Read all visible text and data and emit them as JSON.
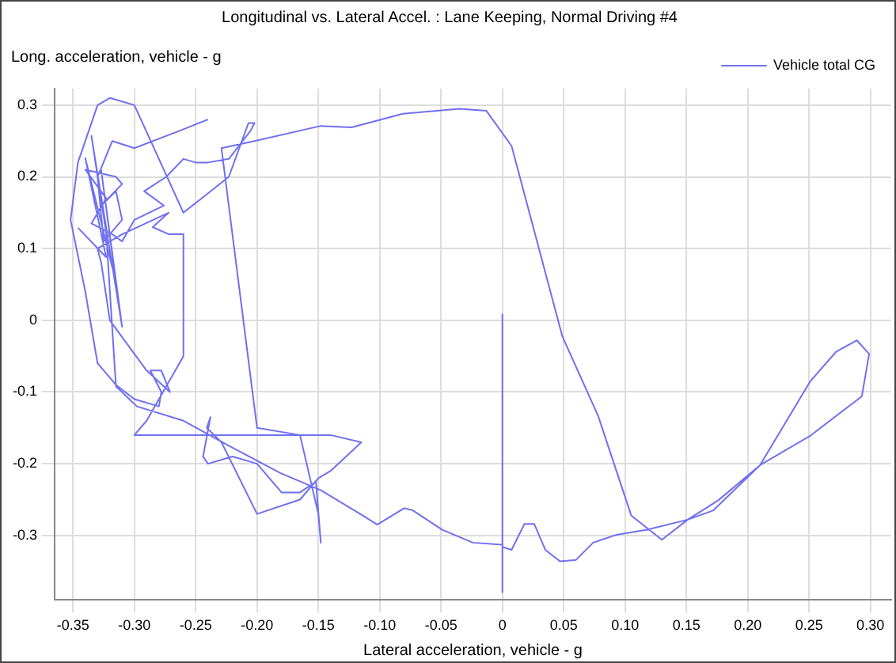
{
  "chart_data": {
    "type": "line",
    "title": "Longitudinal vs. Lateral Accel. : Lane Keeping, Normal Driving #4",
    "xlabel": "Lateral acceleration, vehicle - g",
    "ylabel": "Long. acceleration, vehicle - g",
    "series": [
      {
        "name": "Vehicle total CG",
        "color": "#7070f0",
        "x": [
          -0.24,
          -0.262,
          -0.3,
          -0.318,
          -0.33,
          -0.325,
          -0.31,
          -0.315,
          -0.327,
          -0.31,
          -0.315,
          -0.34,
          -0.323,
          -0.335,
          -0.318,
          -0.31,
          -0.3,
          -0.276,
          -0.292,
          -0.274,
          -0.26,
          -0.25,
          -0.24,
          -0.223,
          -0.205,
          -0.202,
          -0.207,
          -0.223,
          -0.26,
          -0.3,
          -0.32,
          -0.33,
          -0.346,
          -0.352,
          -0.34,
          -0.33,
          -0.315,
          -0.3,
          -0.28,
          -0.278,
          -0.287,
          -0.278,
          -0.271,
          -0.29,
          -0.32,
          -0.327,
          -0.33,
          -0.31,
          -0.272,
          -0.285,
          -0.272,
          -0.26,
          -0.26,
          -0.29,
          -0.3,
          -0.25,
          -0.2,
          -0.14,
          -0.115,
          -0.14,
          -0.15,
          -0.165,
          -0.2,
          -0.229,
          -0.241,
          -0.238,
          -0.244,
          -0.24,
          -0.22,
          -0.2,
          -0.18,
          -0.165,
          -0.152,
          -0.148,
          -0.15,
          -0.165,
          -0.2,
          -0.229,
          -0.202,
          -0.148,
          -0.123,
          -0.081,
          -0.035,
          -0.013,
          0.0075,
          0.049,
          0.078,
          0.105,
          0.13,
          0.151,
          0.176,
          0.21,
          0.251,
          0.272,
          0.289,
          0.299,
          0.293,
          0.251,
          0.21,
          0.172,
          0.151,
          0.118,
          0.093,
          0.074,
          0.06,
          0.047,
          0.035,
          0.026,
          0.018,
          0.0075,
          0,
          0,
          0,
          0,
          -0.024,
          -0.049,
          -0.073,
          -0.08,
          -0.102,
          -0.114,
          -0.148,
          -0.181,
          -0.223,
          -0.26,
          -0.298,
          -0.315,
          -0.323,
          -0.335,
          -0.31,
          -0.327,
          -0.315,
          -0.34,
          -0.323,
          -0.346
        ],
        "values": [
          0.28,
          0.265,
          0.24,
          0.25,
          0.2,
          0.11,
          0.14,
          0.18,
          0.16,
          0.19,
          0.2,
          0.21,
          0.17,
          0.135,
          0.12,
          0.11,
          0.14,
          0.16,
          0.18,
          0.2,
          0.225,
          0.22,
          0.22,
          0.225,
          0.265,
          0.275,
          0.275,
          0.2,
          0.15,
          0.3,
          0.31,
          0.3,
          0.22,
          0.14,
          0.04,
          -0.06,
          -0.09,
          -0.11,
          -0.12,
          -0.1,
          -0.07,
          -0.07,
          -0.1,
          -0.07,
          0.0,
          0.08,
          0.1,
          0.12,
          0.15,
          0.13,
          0.12,
          0.12,
          -0.05,
          -0.14,
          -0.16,
          -0.16,
          -0.16,
          -0.16,
          -0.17,
          -0.21,
          -0.22,
          -0.25,
          -0.27,
          -0.17,
          -0.15,
          -0.135,
          -0.19,
          -0.2,
          -0.19,
          -0.2,
          -0.24,
          -0.24,
          -0.225,
          -0.31,
          -0.27,
          -0.16,
          -0.15,
          0.24,
          0.25,
          0.271,
          0.269,
          0.288,
          0.295,
          0.292,
          0.243,
          -0.023,
          -0.133,
          -0.272,
          -0.306,
          -0.278,
          -0.251,
          -0.202,
          -0.085,
          -0.044,
          -0.028,
          -0.047,
          -0.106,
          -0.161,
          -0.202,
          -0.265,
          -0.278,
          -0.292,
          -0.299,
          -0.31,
          -0.334,
          -0.336,
          -0.32,
          -0.284,
          -0.284,
          -0.32,
          -0.316,
          0.008,
          -0.379,
          -0.313,
          -0.31,
          -0.292,
          -0.265,
          -0.262,
          -0.285,
          -0.272,
          -0.237,
          -0.213,
          -0.175,
          -0.14,
          -0.12,
          -0.092,
          0.122,
          0.257,
          -0.009,
          0.209,
          0.053,
          0.226,
          0.088,
          0.129
        ]
      }
    ],
    "xlim": [
      -0.365,
      0.317
    ],
    "ylim": [
      -0.39,
      0.323
    ],
    "xticks": [
      -0.35,
      {
        "value": -0.3,
        "label": "-0.30"
      },
      -0.25,
      {
        "value": -0.2,
        "label": "-0.20"
      },
      -0.15,
      {
        "value": -0.1,
        "label": "-0.10"
      },
      -0.05,
      0,
      0.05,
      {
        "value": 0.1,
        "label": "0.10"
      },
      0.15,
      {
        "value": 0.2,
        "label": "0.20"
      },
      0.25,
      {
        "value": 0.3,
        "label": "0.30"
      }
    ],
    "yticks": [
      -0.3,
      -0.2,
      -0.1,
      0,
      0.1,
      0.2,
      0.3
    ],
    "grid": true,
    "legend": "top right",
    "marker": "none",
    "line_style": "solid"
  }
}
